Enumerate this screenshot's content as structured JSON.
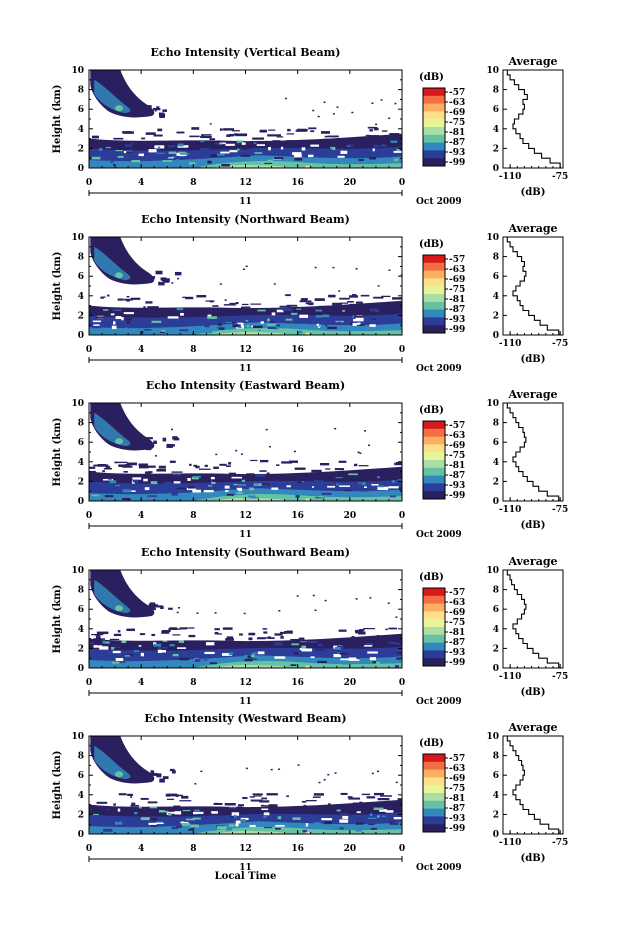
{
  "figure": {
    "time_axis_label": "Local Time",
    "colorbar_unit_label": "(dB)",
    "colorbar_ticks": [
      "-57",
      "-63",
      "-69",
      "-75",
      "-81",
      "-87",
      "-93",
      "-99"
    ],
    "colorbar_colors": [
      "#d7191c",
      "#f46d43",
      "#fdae61",
      "#fee08b",
      "#e6f598",
      "#abdda4",
      "#66c2a5",
      "#3288bd",
      "#2b3d99",
      "#2a2060"
    ],
    "date_day": "11",
    "date_month_year": "Oct 2009",
    "profile_title": "Average",
    "profile_xlabel": "(dB)"
  },
  "chart_data": [
    {
      "type": "heatmap",
      "title": "Echo Intensity (Vertical Beam)",
      "ylabel": "Height (km)",
      "ylim": [
        0,
        10
      ],
      "xlim": [
        0,
        24
      ],
      "yticks": [
        "0",
        "2",
        "4",
        "6",
        "8",
        "10"
      ],
      "xticks": [
        "0",
        "4",
        "8",
        "12",
        "16",
        "20",
        "0"
      ],
      "profile": {
        "type": "line",
        "xlim": [
          -115,
          -73
        ],
        "xticks": [
          "-110",
          "-75"
        ],
        "yticks": [
          "0",
          "2",
          "4",
          "6",
          "8",
          "10"
        ],
        "height_km": [
          0,
          0.5,
          1,
          1.5,
          2,
          2.5,
          3,
          3.5,
          4,
          4.5,
          5,
          5.5,
          6,
          6.5,
          7,
          7.5,
          8,
          8.5,
          9,
          9.5
        ],
        "intensity_db": [
          -75,
          -82,
          -88,
          -93,
          -97,
          -101,
          -103,
          -106,
          -108,
          -107,
          -104,
          -101,
          -100,
          -101,
          -98,
          -100,
          -104,
          -107,
          -110,
          -112
        ]
      }
    },
    {
      "type": "heatmap",
      "title": "Echo Intensity (Northward Beam)",
      "ylabel": "Height (km)",
      "ylim": [
        0,
        10
      ],
      "xlim": [
        0,
        24
      ],
      "yticks": [
        "0",
        "2",
        "4",
        "6",
        "8",
        "10"
      ],
      "xticks": [
        "0",
        "4",
        "8",
        "12",
        "16",
        "20",
        "0"
      ],
      "profile": {
        "type": "line",
        "xlim": [
          -115,
          -73
        ],
        "xticks": [
          "-110",
          "-75"
        ],
        "yticks": [
          "0",
          "2",
          "4",
          "6",
          "8",
          "10"
        ],
        "height_km": [
          0,
          0.5,
          1,
          1.5,
          2,
          2.5,
          3,
          3.5,
          4,
          4.5,
          5,
          5.5,
          6,
          6.5,
          7,
          7.5,
          8,
          8.5,
          9,
          9.5
        ],
        "intensity_db": [
          -76,
          -84,
          -89,
          -93,
          -97,
          -101,
          -103,
          -105,
          -108,
          -106,
          -103,
          -100,
          -99,
          -101,
          -100,
          -102,
          -105,
          -108,
          -110,
          -112
        ]
      }
    },
    {
      "type": "heatmap",
      "title": "Echo Intensity (Eastward Beam)",
      "ylabel": "Height (km)",
      "ylim": [
        0,
        10
      ],
      "xlim": [
        0,
        24
      ],
      "yticks": [
        "0",
        "2",
        "4",
        "6",
        "8",
        "10"
      ],
      "xticks": [
        "0",
        "4",
        "8",
        "12",
        "16",
        "20",
        "0"
      ],
      "profile": {
        "type": "line",
        "xlim": [
          -115,
          -73
        ],
        "xticks": [
          "-110",
          "-75"
        ],
        "yticks": [
          "0",
          "2",
          "4",
          "6",
          "8",
          "10"
        ],
        "height_km": [
          0,
          0.5,
          1,
          1.5,
          2,
          2.5,
          3,
          3.5,
          4,
          4.5,
          5,
          5.5,
          6,
          6.5,
          7,
          7.5,
          8,
          8.5,
          9,
          9.5
        ],
        "intensity_db": [
          -76,
          -84,
          -90,
          -94,
          -98,
          -101,
          -104,
          -106,
          -108,
          -106,
          -103,
          -100,
          -99,
          -100,
          -101,
          -104,
          -106,
          -108,
          -110,
          -112
        ]
      }
    },
    {
      "type": "heatmap",
      "title": "Echo Intensity (Southward Beam)",
      "ylabel": "Height (km)",
      "ylim": [
        0,
        10
      ],
      "xlim": [
        0,
        24
      ],
      "yticks": [
        "0",
        "2",
        "4",
        "6",
        "8",
        "10"
      ],
      "xticks": [
        "0",
        "4",
        "8",
        "12",
        "16",
        "20",
        "0"
      ],
      "profile": {
        "type": "line",
        "xlim": [
          -115,
          -73
        ],
        "xticks": [
          "-110",
          "-75"
        ],
        "yticks": [
          "0",
          "2",
          "4",
          "6",
          "8",
          "10"
        ],
        "height_km": [
          0,
          0.5,
          1,
          1.5,
          2,
          2.5,
          3,
          3.5,
          4,
          4.5,
          5,
          5.5,
          6,
          6.5,
          7,
          7.5,
          8,
          8.5,
          9,
          9.5
        ],
        "intensity_db": [
          -76,
          -84,
          -90,
          -94,
          -98,
          -101,
          -104,
          -106,
          -108,
          -105,
          -102,
          -100,
          -99,
          -100,
          -102,
          -105,
          -107,
          -109,
          -110,
          -112
        ]
      }
    },
    {
      "type": "heatmap",
      "title": "Echo Intensity (Westward Beam)",
      "ylabel": "Height (km)",
      "ylim": [
        0,
        10
      ],
      "xlim": [
        0,
        24
      ],
      "yticks": [
        "0",
        "2",
        "4",
        "6",
        "8",
        "10"
      ],
      "xticks": [
        "0",
        "4",
        "8",
        "12",
        "16",
        "20",
        "0"
      ],
      "profile": {
        "type": "line",
        "xlim": [
          -115,
          -73
        ],
        "xticks": [
          "-110",
          "-75"
        ],
        "yticks": [
          "0",
          "2",
          "4",
          "6",
          "8",
          "10"
        ],
        "height_km": [
          0,
          0.5,
          1,
          1.5,
          2,
          2.5,
          3,
          3.5,
          4,
          4.5,
          5,
          5.5,
          6,
          6.5,
          7,
          7.5,
          8,
          8.5,
          9,
          9.5
        ],
        "intensity_db": [
          -76,
          -83,
          -89,
          -93,
          -97,
          -101,
          -103,
          -106,
          -108,
          -106,
          -103,
          -101,
          -100,
          -101,
          -102,
          -104,
          -106,
          -108,
          -110,
          -112
        ]
      }
    }
  ]
}
